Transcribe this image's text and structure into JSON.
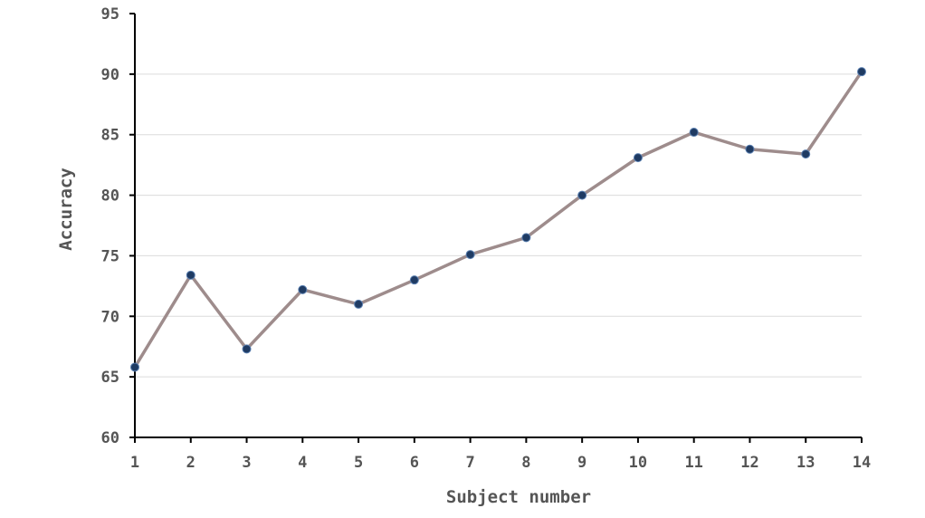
{
  "chart_data": {
    "type": "line",
    "title": "",
    "xlabel": "Subject number",
    "ylabel": "Accuracy",
    "x": [
      1,
      2,
      3,
      4,
      5,
      6,
      7,
      8,
      9,
      10,
      11,
      12,
      13,
      14
    ],
    "series": [
      {
        "values": [
          65.8,
          73.4,
          67.3,
          72.2,
          71.0,
          73.0,
          75.1,
          76.5,
          80.0,
          83.1,
          85.2,
          83.8,
          83.4,
          90.2
        ]
      }
    ],
    "xlim": [
      1,
      14
    ],
    "ylim": [
      60,
      95
    ],
    "yticks": [
      60,
      65,
      70,
      75,
      80,
      85,
      90,
      95
    ],
    "grid": "horizontal",
    "line_color": "#9e8c8c",
    "marker_color": "#1f3b63"
  }
}
